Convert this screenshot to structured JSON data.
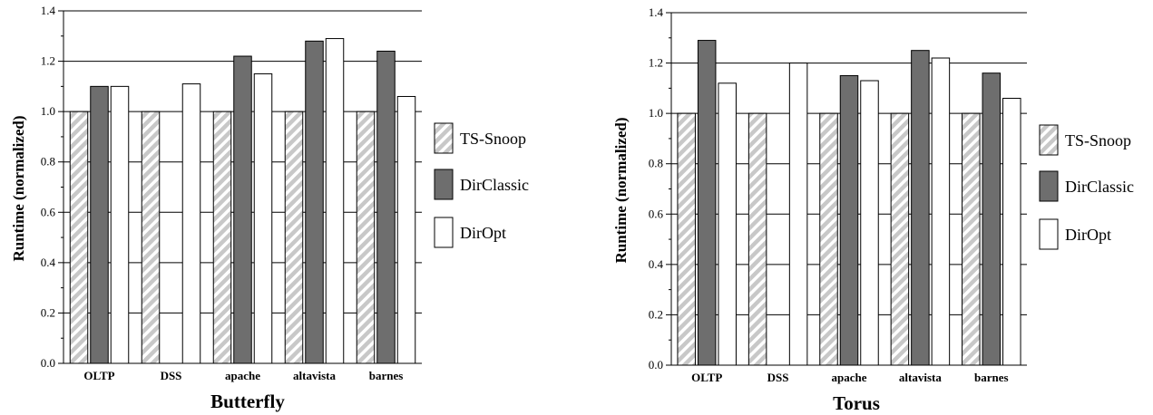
{
  "colors": {
    "ts_snoop_stripe_a": "#c8c8c8",
    "ts_snoop_stripe_b": "#ffffff",
    "dirclassic": "#6e6e6e",
    "diropt": "#ffffff",
    "axis": "#000000"
  },
  "chart_data": [
    {
      "type": "bar",
      "title": "Butterfly",
      "ylabel": "Runtime (normalized)",
      "ylim": [
        0.0,
        1.4
      ],
      "yticks": [
        "0.0",
        "0.2",
        "0.4",
        "0.6",
        "0.8",
        "1.0",
        "1.2",
        "1.4"
      ],
      "grid": "horizontal",
      "legend_position": "right",
      "categories": [
        "OLTP",
        "DSS",
        "apache",
        "altavista",
        "barnes"
      ],
      "series": [
        {
          "name": "TS-Snoop",
          "values": [
            1.0,
            1.0,
            1.0,
            1.0,
            1.0
          ]
        },
        {
          "name": "DirClassic",
          "values": [
            1.1,
            0.0,
            1.22,
            1.28,
            1.24
          ]
        },
        {
          "name": "DirOpt",
          "values": [
            1.1,
            1.11,
            1.15,
            1.29,
            1.06
          ]
        }
      ]
    },
    {
      "type": "bar",
      "title": "Torus",
      "ylabel": "Runtime (normalized)",
      "ylim": [
        0.0,
        1.4
      ],
      "yticks": [
        "0.0",
        "0.2",
        "0.4",
        "0.6",
        "0.8",
        "1.0",
        "1.2",
        "1.4"
      ],
      "grid": "horizontal",
      "legend_position": "right",
      "categories": [
        "OLTP",
        "DSS",
        "apache",
        "altavista",
        "barnes"
      ],
      "series": [
        {
          "name": "TS-Snoop",
          "values": [
            1.0,
            1.0,
            1.0,
            1.0,
            1.0
          ]
        },
        {
          "name": "DirClassic",
          "values": [
            1.29,
            0.0,
            1.15,
            1.25,
            1.16
          ]
        },
        {
          "name": "DirOpt",
          "values": [
            1.12,
            1.2,
            1.13,
            1.22,
            1.06
          ]
        }
      ]
    }
  ]
}
